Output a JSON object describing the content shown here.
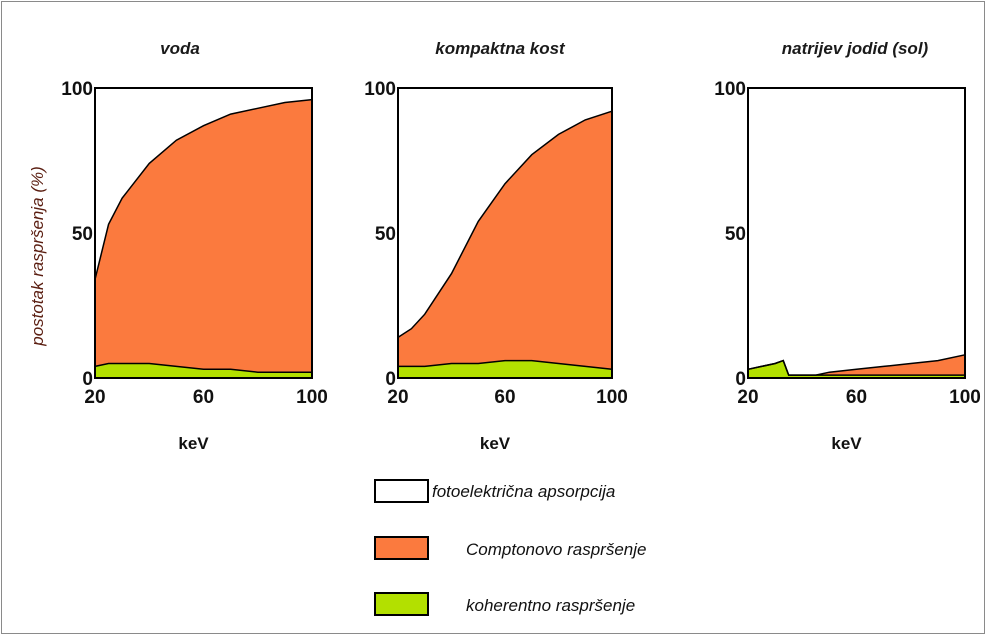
{
  "colors": {
    "photo": "#ffffff",
    "compton": "#fb7a3e",
    "coherent": "#b3e000",
    "outline": "#000000",
    "ylabel": "#5a1d10"
  },
  "chart_data": [
    {
      "type": "area",
      "title": "voda",
      "xlabel": "keV",
      "ylabel": "postotak raspršenja (%)",
      "xlim": [
        20,
        100
      ],
      "ylim": [
        0,
        100
      ],
      "xticks": [
        "20",
        "60",
        "100"
      ],
      "yticks": [
        "0",
        "50",
        "100"
      ],
      "x": [
        20,
        25,
        30,
        40,
        50,
        60,
        70,
        80,
        90,
        100
      ],
      "series": [
        {
          "name": "koherentno raspršenje",
          "values": [
            4,
            5,
            5,
            5,
            4,
            3,
            3,
            2,
            2,
            2
          ]
        },
        {
          "name": "Comptonovo raspršenje",
          "values": [
            34,
            53,
            62,
            74,
            82,
            87,
            91,
            93,
            95,
            96
          ]
        },
        {
          "name": "fotoelektrična apsorpcija",
          "values": [
            100,
            100,
            100,
            100,
            100,
            100,
            100,
            100,
            100,
            100
          ]
        }
      ]
    },
    {
      "type": "area",
      "title": "kompaktna kost",
      "xlabel": "keV",
      "xlim": [
        20,
        100
      ],
      "ylim": [
        0,
        100
      ],
      "xticks": [
        "20",
        "60",
        "100"
      ],
      "yticks": [
        "0",
        "50",
        "100"
      ],
      "x": [
        20,
        25,
        30,
        40,
        50,
        60,
        70,
        80,
        90,
        100
      ],
      "series": [
        {
          "name": "koherentno raspršenje",
          "values": [
            4,
            4,
            4,
            5,
            5,
            6,
            6,
            5,
            4,
            3
          ]
        },
        {
          "name": "Comptonovo raspršenje",
          "values": [
            14,
            17,
            22,
            36,
            54,
            67,
            77,
            84,
            89,
            92
          ]
        },
        {
          "name": "fotoelektrična apsorpcija",
          "values": [
            100,
            100,
            100,
            100,
            100,
            100,
            100,
            100,
            100,
            100
          ]
        }
      ]
    },
    {
      "type": "area",
      "title": "natrijev jodid (sol)",
      "xlabel": "keV",
      "xlim": [
        20,
        100
      ],
      "ylim": [
        0,
        100
      ],
      "xticks": [
        "20",
        "60",
        "100"
      ],
      "yticks": [
        "0",
        "50",
        "100"
      ],
      "x": [
        20,
        25,
        30,
        33,
        35,
        45,
        50,
        60,
        70,
        80,
        90,
        100
      ],
      "series": [
        {
          "name": "koherentno raspršenje",
          "values": [
            3,
            4,
            5,
            6,
            1,
            1,
            1,
            1,
            1,
            1,
            1,
            1
          ]
        },
        {
          "name": "Comptonovo raspršenje",
          "values": [
            3,
            4,
            5,
            6,
            1,
            1,
            2,
            3,
            4,
            5,
            6,
            8
          ]
        },
        {
          "name": "fotoelektrična apsorpcija",
          "values": [
            100,
            100,
            100,
            100,
            100,
            100,
            100,
            100,
            100,
            100,
            100,
            100
          ]
        }
      ]
    }
  ],
  "legend": [
    {
      "label": "fotoelektrična apsorpcija",
      "color": "#ffffff"
    },
    {
      "label": "Comptonovo raspršenje",
      "color": "#fb7a3e"
    },
    {
      "label": "koherentno raspršenje",
      "color": "#b3e000"
    }
  ]
}
